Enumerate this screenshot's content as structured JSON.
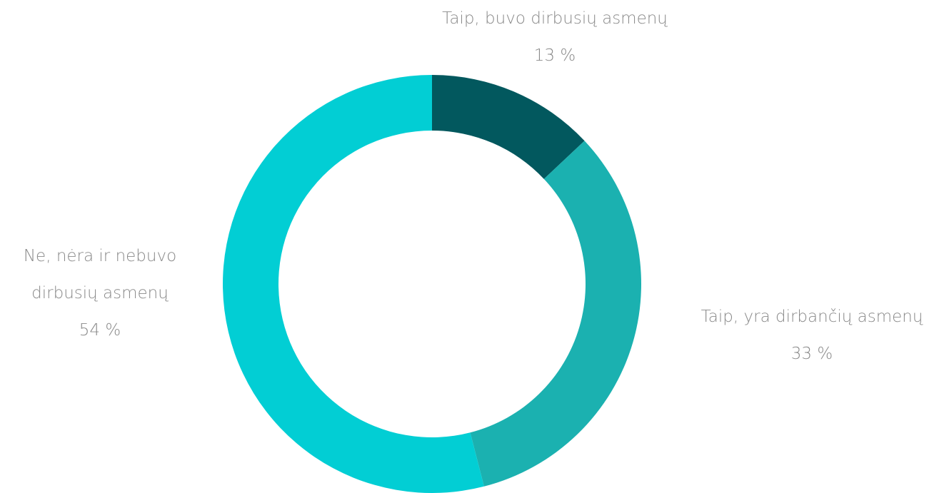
{
  "chart_data": {
    "type": "donut",
    "categories": [
      "Taip, buvo dirbusių asmenų",
      "Taip, yra dirbančių asmenų",
      "Ne, nėra ir nebuvo dirbusių asmenų"
    ],
    "values": [
      13,
      33,
      54
    ],
    "value_labels": [
      "13 %",
      "33 %",
      "54 %"
    ],
    "colors": [
      "#02585e",
      "#1bb1b0",
      "#02ced4"
    ]
  }
}
